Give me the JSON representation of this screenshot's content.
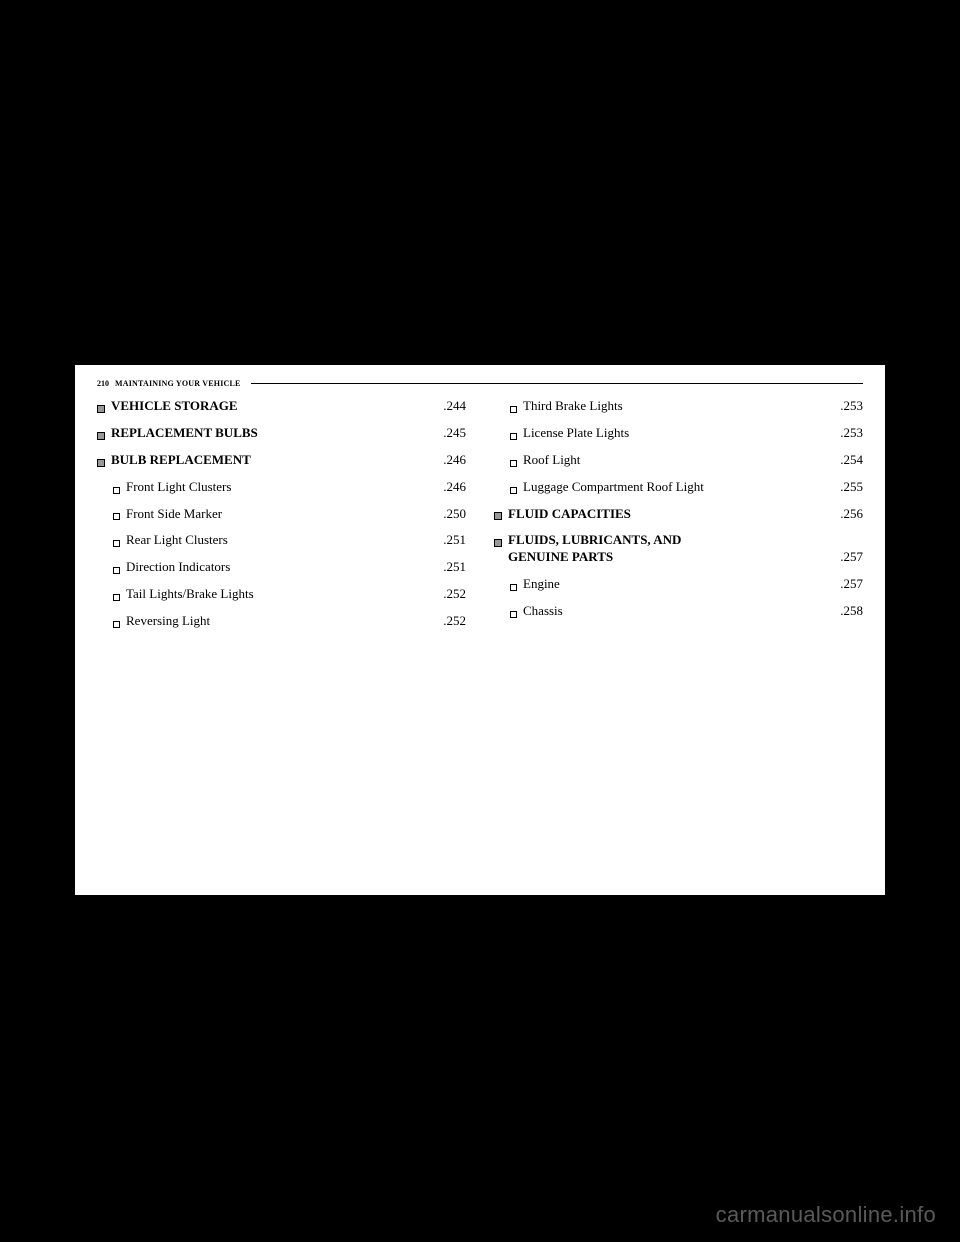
{
  "header": {
    "page": "210",
    "title": "MAINTAINING YOUR VEHICLE"
  },
  "left": [
    {
      "bullet": "sq",
      "indent": false,
      "bold": true,
      "label": "VEHICLE STORAGE",
      "page": ".244"
    },
    {
      "bullet": "sq",
      "indent": false,
      "bold": true,
      "label": "REPLACEMENT BULBS",
      "page": ".245"
    },
    {
      "bullet": "sq",
      "indent": false,
      "bold": true,
      "label": "BULB REPLACEMENT",
      "page": ".246"
    },
    {
      "bullet": "open",
      "indent": true,
      "bold": false,
      "label": "Front Light Clusters",
      "page": ".246"
    },
    {
      "bullet": "open",
      "indent": true,
      "bold": false,
      "label": "Front Side Marker",
      "page": ".250"
    },
    {
      "bullet": "open",
      "indent": true,
      "bold": false,
      "label": "Rear Light Clusters",
      "page": ".251"
    },
    {
      "bullet": "open",
      "indent": true,
      "bold": false,
      "label": "Direction Indicators",
      "page": ".251"
    },
    {
      "bullet": "open",
      "indent": true,
      "bold": false,
      "label": "Tail Lights/Brake Lights",
      "page": ".252"
    },
    {
      "bullet": "open",
      "indent": true,
      "bold": false,
      "label": "Reversing Light",
      "page": ".252"
    }
  ],
  "right": [
    {
      "bullet": "open",
      "indent": true,
      "bold": false,
      "label": "Third Brake Lights",
      "page": ".253"
    },
    {
      "bullet": "open",
      "indent": true,
      "bold": false,
      "label": "License Plate Lights",
      "page": ".253"
    },
    {
      "bullet": "open",
      "indent": true,
      "bold": false,
      "label": "Roof Light",
      "page": ".254"
    },
    {
      "bullet": "open",
      "indent": true,
      "bold": false,
      "label": "Luggage Compartment Roof Light",
      "page": ".255"
    },
    {
      "bullet": "sq",
      "indent": false,
      "bold": true,
      "label": "FLUID CAPACITIES",
      "page": ".256"
    },
    {
      "bullet": "sq",
      "indent": false,
      "bold": true,
      "multi": true,
      "line1": "FLUIDS, LUBRICANTS, AND",
      "line2": "GENUINE PARTS",
      "page": ".257"
    },
    {
      "bullet": "open",
      "indent": true,
      "bold": false,
      "label": "Engine",
      "page": ".257"
    },
    {
      "bullet": "open",
      "indent": true,
      "bold": false,
      "label": "Chassis",
      "page": ".258"
    }
  ],
  "watermark": "carmanualsonline.info"
}
